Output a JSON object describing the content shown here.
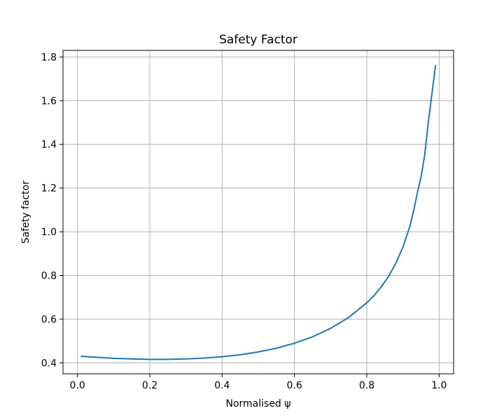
{
  "chart_data": {
    "type": "line",
    "title": "Safety Factor",
    "xlabel": "Normalised ψ",
    "ylabel": "Safety factor",
    "xlim": [
      -0.04,
      1.04
    ],
    "ylim": [
      0.35,
      1.83
    ],
    "xticks": [
      0.0,
      0.2,
      0.4,
      0.6,
      0.8,
      1.0
    ],
    "xtick_labels": [
      "0.0",
      "0.2",
      "0.4",
      "0.6",
      "0.8",
      "1.0"
    ],
    "yticks": [
      0.4,
      0.6,
      0.8,
      1.0,
      1.2,
      1.4,
      1.6,
      1.8
    ],
    "ytick_labels": [
      "0.4",
      "0.6",
      "0.8",
      "1.0",
      "1.2",
      "1.4",
      "1.6",
      "1.8"
    ],
    "grid": true,
    "series": [
      {
        "color": "#1f77b4",
        "x": [
          0.01,
          0.05,
          0.1,
          0.15,
          0.2,
          0.25,
          0.3,
          0.35,
          0.4,
          0.45,
          0.5,
          0.55,
          0.6,
          0.65,
          0.7,
          0.75,
          0.8,
          0.82,
          0.84,
          0.86,
          0.88,
          0.9,
          0.92,
          0.93,
          0.94,
          0.95,
          0.96,
          0.97,
          0.98,
          0.99
        ],
        "y": [
          0.43,
          0.426,
          0.421,
          0.418,
          0.416,
          0.416,
          0.418,
          0.422,
          0.428,
          0.437,
          0.45,
          0.467,
          0.49,
          0.519,
          0.558,
          0.608,
          0.675,
          0.708,
          0.748,
          0.795,
          0.855,
          0.93,
          1.03,
          1.1,
          1.18,
          1.25,
          1.35,
          1.5,
          1.63,
          1.76
        ]
      }
    ]
  }
}
